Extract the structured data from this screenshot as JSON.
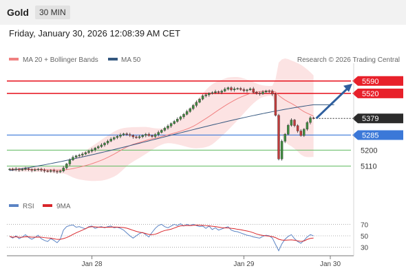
{
  "header": {
    "asset": "Gold",
    "timeframe": "30 MIN",
    "datetime": "Friday, January 30, 2026 12:08:39 AM CET"
  },
  "legend": {
    "ma20": "MA 20 + Bollinger Bands",
    "ma50": "MA 50",
    "copyright": "Research © 2026 Trading Central",
    "rsi": "RSI",
    "rsi_ma": "9MA"
  },
  "colors": {
    "resistance": "#e8202a",
    "support": "#3b78d8",
    "level_green": "#5cb85c",
    "price": "#2b2b2b",
    "ma20": "#f08080",
    "ma50": "#34577f",
    "rsi": "#5b84c4",
    "rsi_ma": "#d9262a",
    "candle_up": "#3f8c3f",
    "candle_down": "#c23b3b"
  },
  "levels": [
    {
      "value": 5590,
      "label": "5590",
      "kind": "resistance"
    },
    {
      "value": 5520,
      "label": "5520",
      "kind": "resistance"
    },
    {
      "value": 5379,
      "label": "5379",
      "kind": "price"
    },
    {
      "value": 5285,
      "label": "5285",
      "kind": "support"
    },
    {
      "value": 5200,
      "label": "5200",
      "kind": "target"
    },
    {
      "value": 5110,
      "label": "5110",
      "kind": "target"
    }
  ],
  "chart_data": {
    "type": "line",
    "chart": "candlestick",
    "instrument": "Gold",
    "timeframe": "30 MIN",
    "x_ticks": [
      "Jan 28",
      "Jan 29",
      "Jan 30"
    ],
    "bars_per_day": 48,
    "total_bars": 97,
    "price_ylim": [
      4930,
      5690
    ],
    "close": [
      5093,
      5090,
      5094,
      5088,
      5091,
      5096,
      5090,
      5086,
      5089,
      5093,
      5087,
      5083,
      5080,
      5085,
      5081,
      5077,
      5082,
      5100,
      5122,
      5145,
      5160,
      5168,
      5172,
      5178,
      5186,
      5194,
      5202,
      5212,
      5220,
      5229,
      5240,
      5251,
      5262,
      5271,
      5278,
      5286,
      5292,
      5288,
      5283,
      5275,
      5270,
      5276,
      5283,
      5289,
      5282,
      5277,
      5288,
      5300,
      5312,
      5324,
      5336,
      5350,
      5362,
      5375,
      5388,
      5402,
      5418,
      5434,
      5452,
      5470,
      5488,
      5506,
      5512,
      5520,
      5524,
      5530,
      5526,
      5533,
      5544,
      5552,
      5540,
      5546,
      5548,
      5542,
      5535,
      5540,
      5546,
      5527,
      5522,
      5518,
      5528,
      5534,
      5532,
      5516,
      5396,
      5150,
      5250,
      5290,
      5340,
      5370,
      5338,
      5308,
      5282,
      5318,
      5356,
      5382,
      5380
    ],
    "ma20_end": 5430,
    "ma50_end": 5456,
    "ma50_start": 5085,
    "bollinger_upper_end": 5560,
    "bollinger_lower_end": 5230,
    "forecast": {
      "from": 5379,
      "to": 5590,
      "direction": "up"
    },
    "rsi_ylim": [
      20,
      80
    ],
    "rsi_levels": [
      70,
      50,
      30
    ],
    "rsi": [
      49,
      46,
      50,
      45,
      48,
      52,
      47,
      44,
      47,
      51,
      45,
      42,
      40,
      45,
      42,
      38,
      44,
      60,
      66,
      68,
      69,
      65,
      66,
      64,
      62,
      66,
      67,
      63,
      65,
      66,
      64,
      66,
      67,
      64,
      65,
      63,
      60,
      55,
      50,
      46,
      50,
      54,
      56,
      52,
      48,
      56,
      63,
      68,
      70,
      66,
      64,
      67,
      70,
      68,
      71,
      67,
      70,
      68,
      70,
      68,
      66,
      67,
      63,
      67,
      61,
      64,
      60,
      62,
      64,
      66,
      60,
      58,
      57,
      55,
      53,
      51,
      50,
      48,
      47,
      46,
      49,
      51,
      50,
      46,
      35,
      24,
      36,
      44,
      49,
      52,
      45,
      40,
      37,
      42,
      48,
      52,
      50
    ],
    "rsi_ma_end": 47
  }
}
